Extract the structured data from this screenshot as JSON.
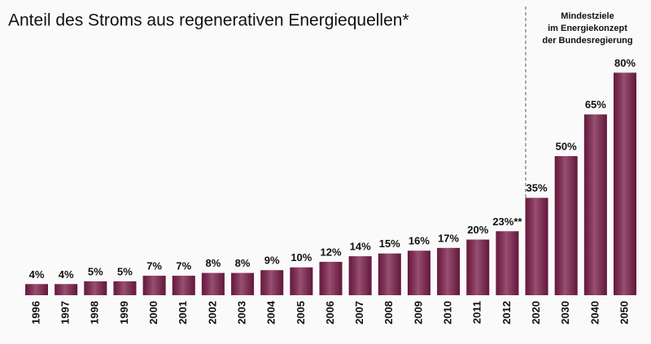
{
  "chart_data": {
    "type": "bar",
    "title": "Anteil des Stroms aus regenerativen Energiequellen*",
    "annotation": [
      "Mindestziele",
      "im Energiekonzept",
      "der Bundesregierung"
    ],
    "categories": [
      "1996",
      "1997",
      "1998",
      "1999",
      "2000",
      "2001",
      "2002",
      "2003",
      "2004",
      "2005",
      "2006",
      "2007",
      "2008",
      "2009",
      "2010",
      "2011",
      "2012",
      "2020",
      "2030",
      "2040",
      "2050"
    ],
    "values": [
      4,
      4,
      5,
      5,
      7,
      7,
      8,
      8,
      9,
      10,
      12,
      14,
      15,
      16,
      17,
      20,
      23,
      35,
      50,
      65,
      80
    ],
    "value_labels": [
      "4%",
      "4%",
      "5%",
      "5%",
      "7%",
      "7%",
      "8%",
      "8%",
      "9%",
      "10%",
      "12%",
      "14%",
      "15%",
      "16%",
      "17%",
      "20%",
      "23%**",
      "35%",
      "50%",
      "65%",
      "80%"
    ],
    "color": "#7b1e4a"
  }
}
